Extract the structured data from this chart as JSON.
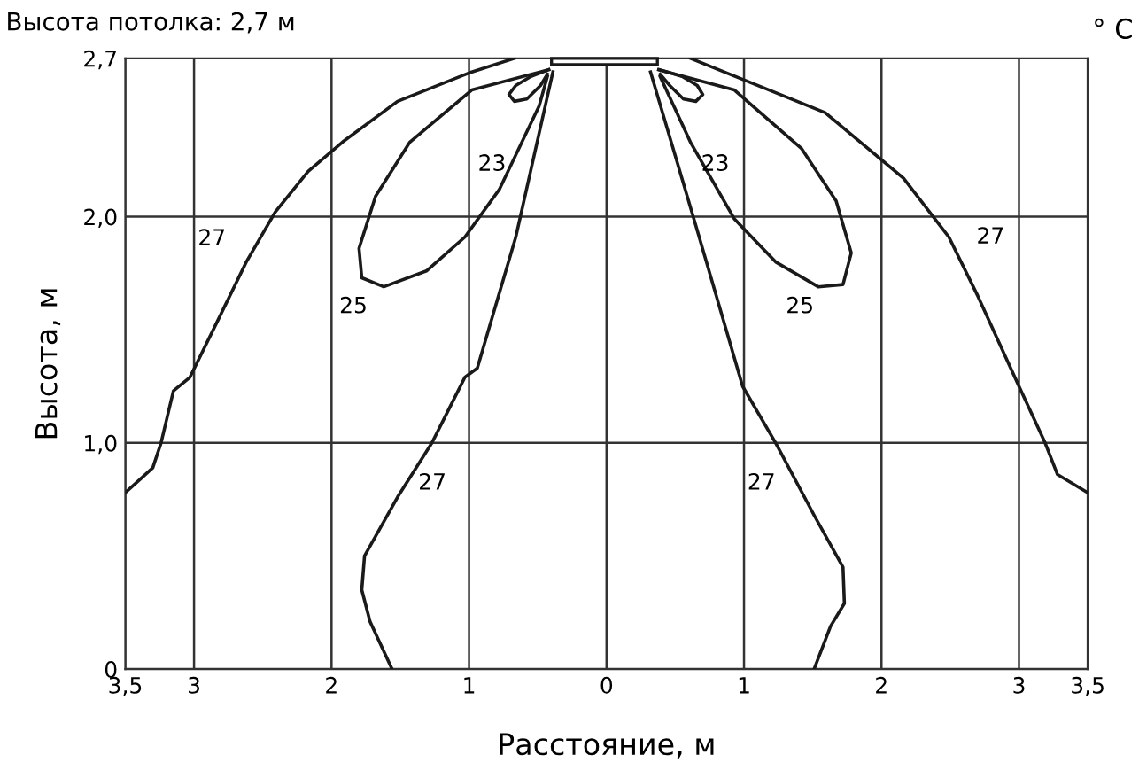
{
  "chart_data": {
    "type": "line",
    "title": "Высота потолка: 2,7 м",
    "xlabel": "Расстояние, м",
    "ylabel": "Высота, м",
    "xlim": [
      -3.5,
      3.5
    ],
    "ylim": [
      0,
      2.7
    ],
    "xticks": [
      {
        "value": -3.5,
        "label": "3,5"
      },
      {
        "value": -3,
        "label": "3"
      },
      {
        "value": -2,
        "label": "2"
      },
      {
        "value": -1,
        "label": "1"
      },
      0,
      1,
      2,
      3,
      {
        "value": 3.5,
        "label": "3,5"
      }
    ],
    "yticks": [
      0,
      {
        "value": 1,
        "label": "1,0"
      },
      {
        "value": 2,
        "label": "2,0"
      },
      {
        "value": 2.7,
        "label": "2,7"
      }
    ],
    "grid": true,
    "marker": "none",
    "line_style": "solid",
    "series": [
      {
        "color": "#1a1a1a",
        "x": [
          -0.67,
          -0.98,
          -1.52,
          -1.92,
          -2.17,
          -2.41,
          -2.62,
          -2.82,
          -3.03,
          -3.15,
          -3.24,
          -3.3,
          -3.39,
          -3.5
        ],
        "values": [
          2.7,
          2.64,
          2.51,
          2.33,
          2.2,
          2.02,
          1.8,
          1.55,
          1.29,
          1.23,
          1.0,
          0.89,
          0.84,
          0.78
        ]
      },
      {
        "color": "#1a1a1a",
        "x": [
          0.61,
          1.59,
          2.16,
          2.49,
          2.7,
          3.0,
          3.19,
          3.28,
          3.5
        ],
        "values": [
          2.7,
          2.46,
          2.17,
          1.91,
          1.65,
          1.25,
          1.0,
          0.86,
          0.78
        ]
      },
      {
        "color": "#1a1a1a",
        "x": [
          -0.39,
          -0.66,
          -0.94,
          -1.03,
          -1.27,
          -1.52,
          -1.76,
          -1.78,
          -1.72,
          -1.56
        ],
        "values": [
          2.64,
          1.91,
          1.33,
          1.29,
          1.0,
          0.76,
          0.5,
          0.35,
          0.21,
          0
        ]
      },
      {
        "color": "#1a1a1a",
        "x": [
          0.32,
          0.65,
          0.99,
          1.23,
          1.51,
          1.72,
          1.73,
          1.63,
          1.51
        ],
        "values": [
          2.64,
          1.96,
          1.25,
          1.0,
          0.68,
          0.45,
          0.29,
          0.19,
          0
        ]
      },
      {
        "color": "#1a1a1a",
        "x": [
          -0.42,
          -0.98,
          -1.43,
          -1.68,
          -1.8,
          -1.78,
          -1.62,
          -1.31,
          -1.03,
          -0.78,
          -0.49,
          -0.43
        ],
        "values": [
          2.65,
          2.56,
          2.33,
          2.09,
          1.86,
          1.73,
          1.69,
          1.76,
          1.91,
          2.12,
          2.49,
          2.62
        ]
      },
      {
        "color": "#1a1a1a",
        "x": [
          0.38,
          0.93,
          1.42,
          1.67,
          1.78,
          1.72,
          1.54,
          1.23,
          0.93,
          0.61,
          0.39
        ],
        "values": [
          2.65,
          2.56,
          2.3,
          2.07,
          1.84,
          1.7,
          1.69,
          1.8,
          1.99,
          2.33,
          2.62
        ]
      },
      {
        "color": "#1a1a1a",
        "x": [
          -0.42,
          -0.55,
          -0.66,
          -0.71,
          -0.67,
          -0.58,
          -0.48,
          -0.43
        ],
        "values": [
          2.65,
          2.62,
          2.58,
          2.54,
          2.51,
          2.52,
          2.58,
          2.63
        ]
      },
      {
        "color": "#1a1a1a",
        "x": [
          0.38,
          0.55,
          0.66,
          0.7,
          0.65,
          0.56,
          0.46,
          0.39
        ],
        "values": [
          2.65,
          2.62,
          2.58,
          2.54,
          2.51,
          2.52,
          2.58,
          2.63
        ]
      }
    ],
    "annotations": [
      "23",
      "23",
      "25",
      "25",
      "27",
      "27",
      "27",
      "27",
      "° C"
    ]
  }
}
